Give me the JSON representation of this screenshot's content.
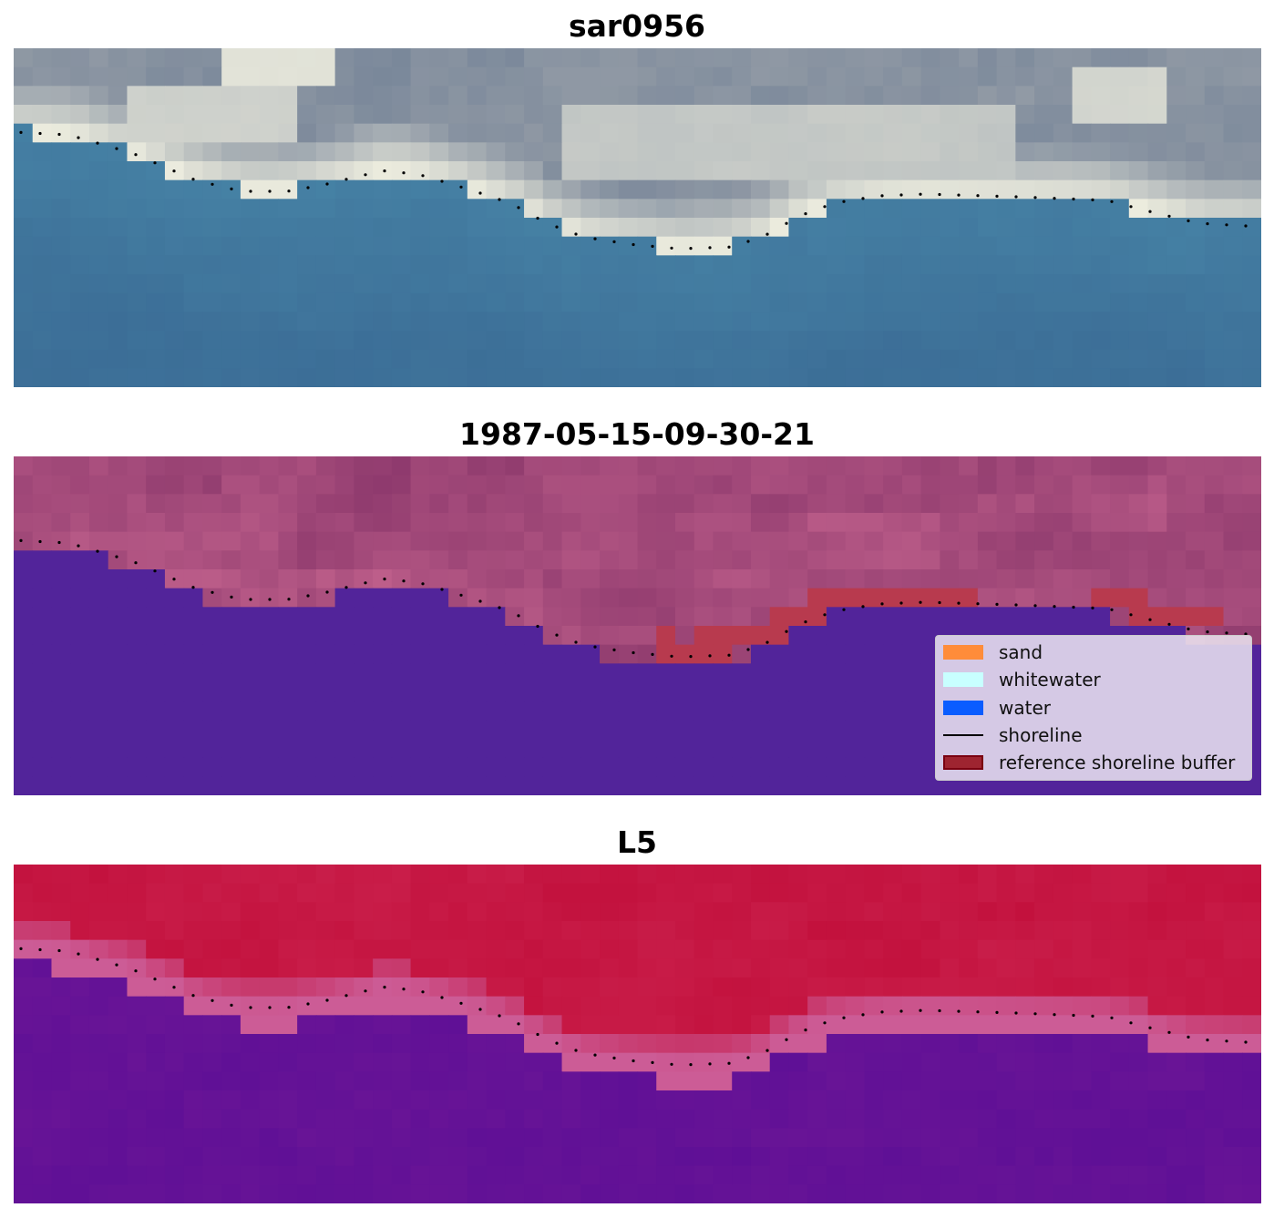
{
  "panels": [
    {
      "title": "sar0956",
      "scheme": "rgb"
    },
    {
      "title": "1987-05-15-09-30-21",
      "scheme": "classified"
    },
    {
      "title": "L5",
      "scheme": "index"
    }
  ],
  "legend": {
    "items": [
      {
        "label": "sand",
        "kind": "patch",
        "color": "#ff8c3a"
      },
      {
        "label": "whitewater",
        "kind": "patch",
        "color": "#c8ffff"
      },
      {
        "label": "water",
        "kind": "patch",
        "color": "#0a5cff"
      },
      {
        "label": "shoreline",
        "kind": "line",
        "color": "#000000"
      },
      {
        "label": "reference shoreline buffer",
        "kind": "patch",
        "color": "#9e2430",
        "edge": "#7a0010"
      }
    ]
  },
  "colors": {
    "water_class": "#52249a",
    "buffer_class": "#b83a4e",
    "index_land": "#c2103c",
    "index_water": "#6a1596"
  }
}
